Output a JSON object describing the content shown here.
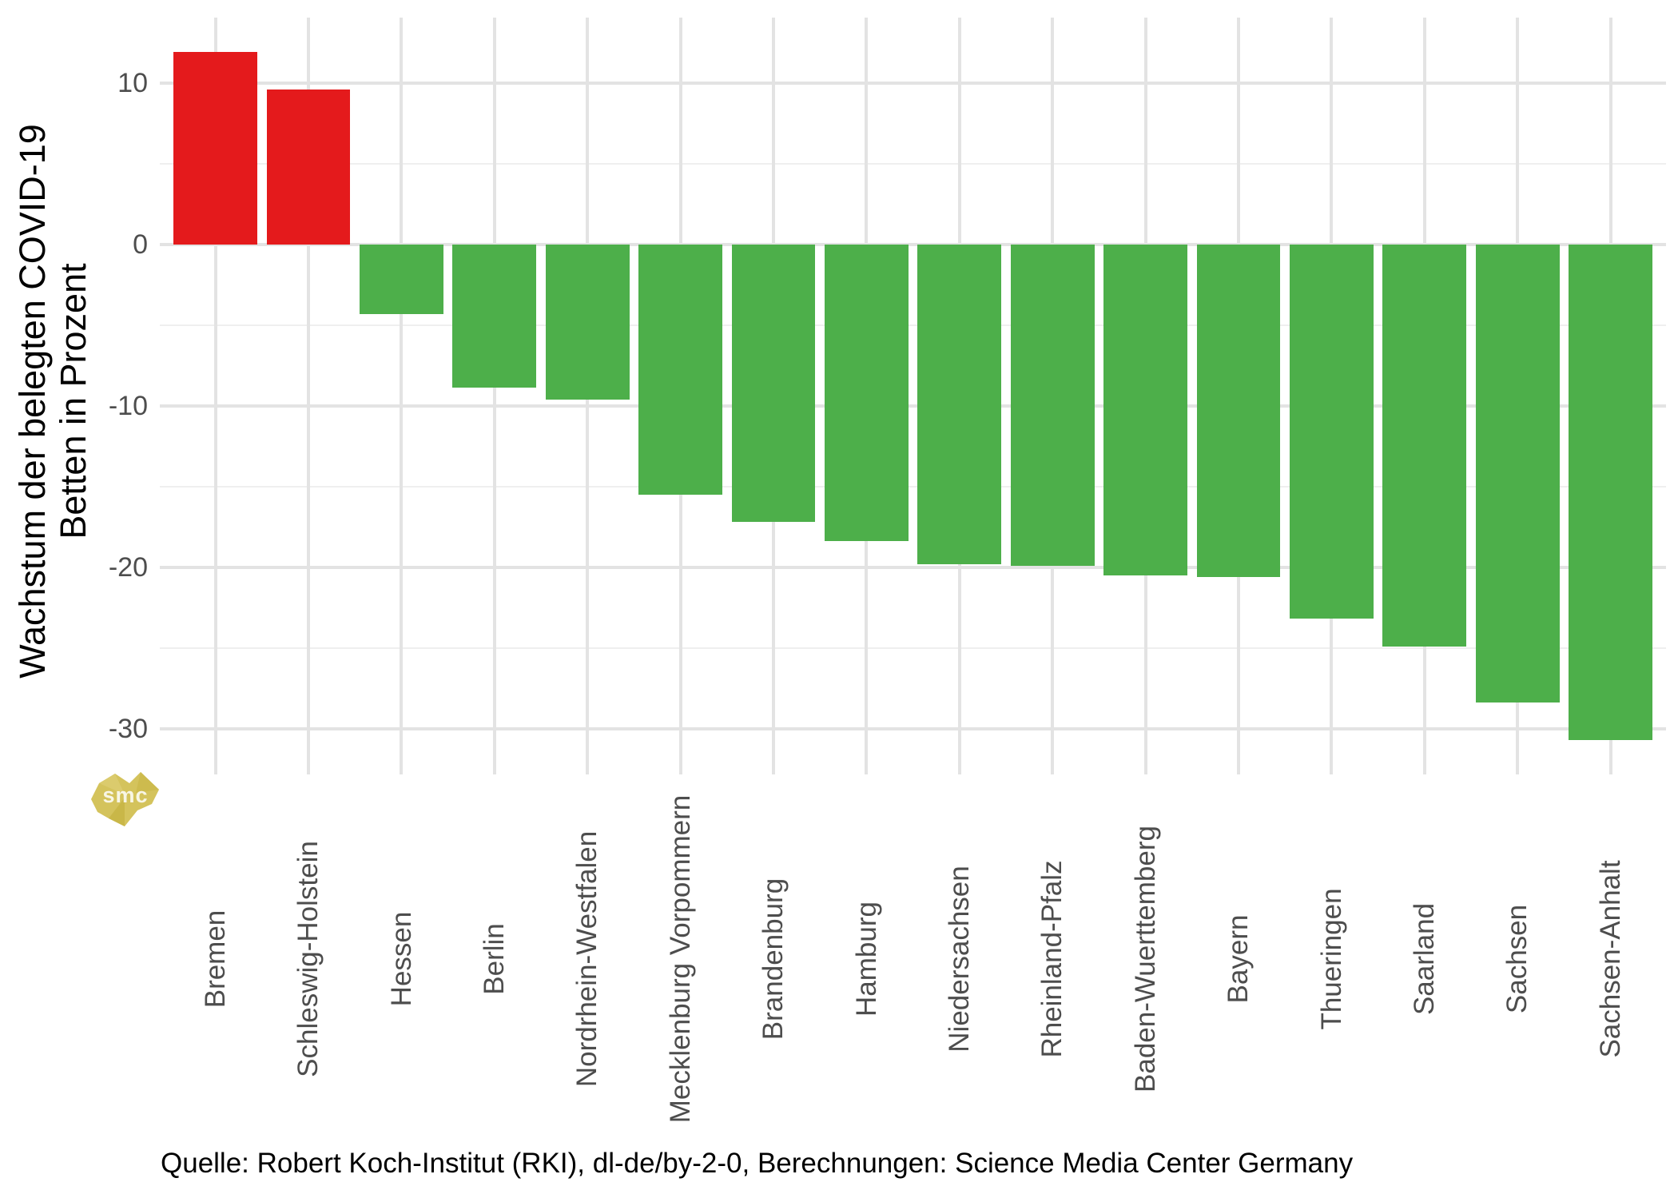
{
  "chart_data": {
    "type": "bar",
    "title": "",
    "ylabel_lines": [
      "Wachstum der belegten COVID-19",
      "Betten in Prozent"
    ],
    "xlabel": "",
    "categories": [
      "Bremen",
      "Schleswig-Holstein",
      "Hessen",
      "Berlin",
      "Nordrhein-Westfalen",
      "Mecklenburg Vorpommern",
      "Brandenburg",
      "Hamburg",
      "Niedersachsen",
      "Rheinland-Pfalz",
      "Baden-Wuerttemberg",
      "Bayern",
      "Thueringen",
      "Saarland",
      "Sachsen",
      "Sachsen-Anhalt"
    ],
    "values": [
      11.9,
      9.6,
      -4.3,
      -8.9,
      -9.6,
      -15.5,
      -17.2,
      -18.4,
      -19.8,
      -19.9,
      -20.5,
      -20.6,
      -23.2,
      -24.9,
      -28.4,
      -30.7
    ],
    "value_unit": "percent",
    "positive_color": "#e41a1c",
    "negative_color": "#4daf4a",
    "y_ticks_major": [
      10,
      0,
      -10,
      -20,
      -30
    ],
    "y_ticks_minor": [
      5,
      -5,
      -15,
      -25
    ],
    "ylim": [
      -32.8,
      14.0
    ],
    "grid": "horizontal major+minor, vertical at category centers",
    "legend": "none"
  },
  "caption": "Quelle: Robert Koch-Institut (RKI), dl-de/by-2-0, Berechnungen: Science Media Center Germany",
  "watermark": {
    "label": "smc",
    "color": "#d4c35c"
  },
  "colors": {
    "background": "#ffffff",
    "grid_major": "#e3e3e3",
    "grid_minor": "#efefef",
    "axis_text": "#4d4d4d",
    "title_text": "#000000"
  }
}
